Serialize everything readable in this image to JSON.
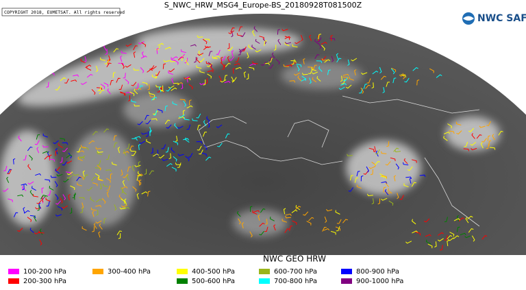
{
  "header": {
    "title": "S_NWC_HRW_MSG4_Europe-BS_20180928T081500Z",
    "copyright": "COPYRIGHT 2018, EUMETSAT. All rights reserved",
    "logo": "NWC SAF"
  },
  "legend": {
    "title": "NWC GEO HRW",
    "items": [
      {
        "label": "100-200 hPa",
        "color": "#ff00ff"
      },
      {
        "label": "200-300 hPa",
        "color": "#ff0000"
      },
      {
        "label": "300-400 hPa",
        "color": "#ffa500"
      },
      {
        "label": "400-500 hPa",
        "color": "#ffff00"
      },
      {
        "label": "500-600 hPa",
        "color": "#008000"
      },
      {
        "label": "600-700 hPa",
        "color": "#9ab51c"
      },
      {
        "label": "700-800 hPa",
        "color": "#00ffff"
      },
      {
        "label": "800-900 hPa",
        "color": "#0000ff"
      },
      {
        "label": "900-1000 hPa",
        "color": "#800080"
      }
    ]
  }
}
